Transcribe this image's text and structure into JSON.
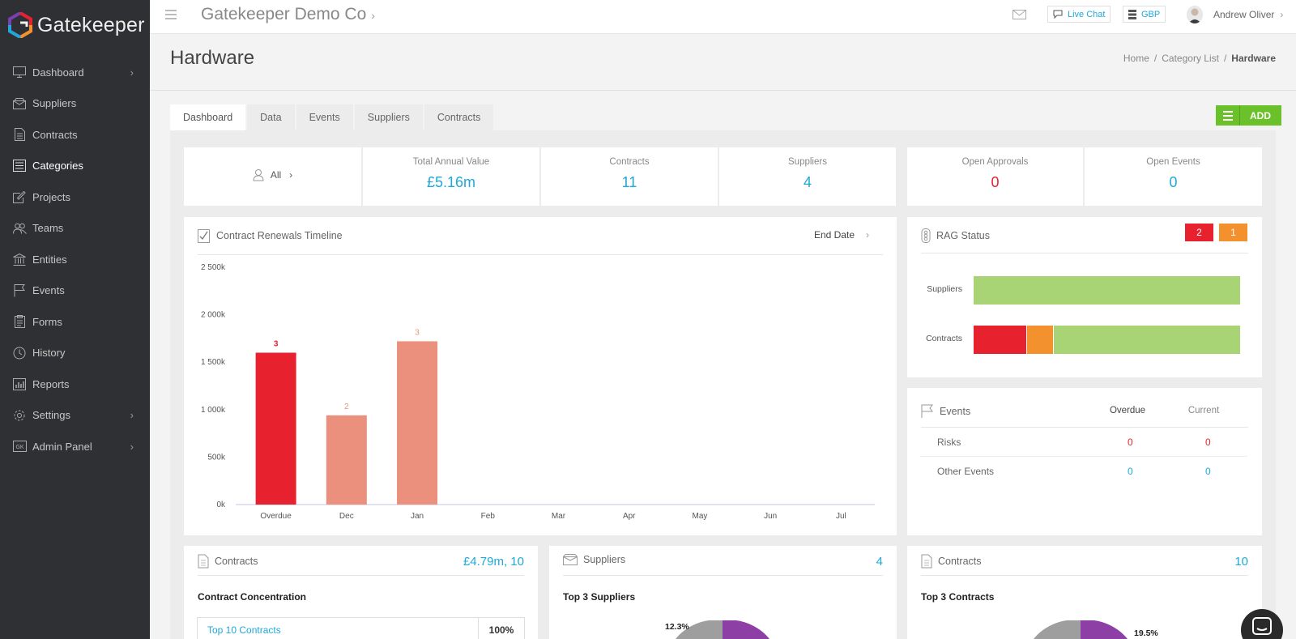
{
  "brand": {
    "name": "Gatekeeper"
  },
  "sidebar": {
    "items": [
      {
        "label": "Dashboard",
        "icon": "monitor-icon",
        "chevron": true
      },
      {
        "label": "Suppliers",
        "icon": "box-icon",
        "chevron": false
      },
      {
        "label": "Contracts",
        "icon": "document-icon",
        "chevron": false
      },
      {
        "label": "Categories",
        "icon": "list-icon",
        "chevron": false,
        "active": true
      },
      {
        "label": "Projects",
        "icon": "edit-icon",
        "chevron": false
      },
      {
        "label": "Teams",
        "icon": "people-icon",
        "chevron": false
      },
      {
        "label": "Entities",
        "icon": "bank-icon",
        "chevron": false
      },
      {
        "label": "Events",
        "icon": "flag-icon",
        "chevron": false
      },
      {
        "label": "Forms",
        "icon": "clipboard-icon",
        "chevron": false
      },
      {
        "label": "History",
        "icon": "clock-icon",
        "chevron": false
      },
      {
        "label": "Reports",
        "icon": "bar-chart-icon",
        "chevron": false
      },
      {
        "label": "Settings",
        "icon": "gear-icon",
        "chevron": true
      },
      {
        "label": "Admin Panel",
        "icon": "gk-icon",
        "chevron": true
      }
    ]
  },
  "topbar": {
    "company": "Gatekeeper Demo Co",
    "live_chat": "Live Chat",
    "currency": "GBP",
    "user": "Andrew Oliver"
  },
  "page": {
    "title": "Hardware",
    "breadcrumb": [
      "Home",
      "Category List",
      "Hardware"
    ]
  },
  "tabs": [
    "Dashboard",
    "Data",
    "Events",
    "Suppliers",
    "Contracts"
  ],
  "add_button": "ADD",
  "stats": {
    "filter": "All",
    "total_annual_value": {
      "label": "Total Annual Value",
      "value": "£5.16m"
    },
    "contracts": {
      "label": "Contracts",
      "value": "11"
    },
    "suppliers": {
      "label": "Suppliers",
      "value": "4"
    },
    "open_approvals": {
      "label": "Open Approvals",
      "value": "0"
    },
    "open_events": {
      "label": "Open Events",
      "value": "0"
    }
  },
  "timeline": {
    "title": "Contract Renewals Timeline",
    "sort": "End Date"
  },
  "chart_data": {
    "type": "bar",
    "title": "Contract Renewals Timeline",
    "categories": [
      "Overdue",
      "Dec",
      "Jan",
      "Feb",
      "Mar",
      "Apr",
      "May",
      "Jun",
      "Jul"
    ],
    "values": [
      1600000,
      940000,
      1720000,
      0,
      0,
      0,
      0,
      0,
      0
    ],
    "counts": [
      "3",
      "2",
      "3",
      "",
      "",
      "",
      "",
      "",
      ""
    ],
    "colors": [
      "#e8212f",
      "#ec907e",
      "#ec907e",
      "#ec907e",
      "#ec907e",
      "#ec907e",
      "#ec907e",
      "#ec907e",
      "#ec907e"
    ],
    "count_colors": [
      "#e8212f",
      "#ec907e",
      "#ec907e"
    ],
    "ylim": [
      0,
      2500000
    ],
    "yticks": [
      0,
      500000,
      1000000,
      1500000,
      2000000,
      2500000
    ],
    "ytick_labels": [
      "0k",
      "500k",
      "1 000k",
      "1 500k",
      "2 000k",
      "2 500k"
    ],
    "grid": false
  },
  "rag": {
    "title": "RAG Status",
    "badges": [
      {
        "value": "2",
        "color": "#e8212f"
      },
      {
        "value": "1",
        "color": "#f3912f"
      }
    ],
    "rows": [
      {
        "label": "Suppliers",
        "segments": [
          {
            "fraction": 1.0,
            "color": "#a9d475"
          }
        ]
      },
      {
        "label": "Contracts",
        "segments": [
          {
            "fraction": 0.2,
            "color": "#e8212f"
          },
          {
            "fraction": 0.1,
            "color": "#f3912f"
          },
          {
            "fraction": 0.7,
            "color": "#a9d475"
          }
        ]
      }
    ]
  },
  "events": {
    "title": "Events",
    "col_overdue": "Overdue",
    "col_current": "Current",
    "rows": [
      {
        "label": "Risks",
        "overdue": "0",
        "current": "0",
        "color": "#e8212f"
      },
      {
        "label": "Other Events",
        "overdue": "0",
        "current": "0",
        "color": "#1ea9d9"
      }
    ]
  },
  "bottom": {
    "contracts": {
      "title": "Contracts",
      "value": "£4.79m, 10",
      "subtitle": "Contract Concentration",
      "table_label": "Top 10 Contracts",
      "table_value": "100%"
    },
    "suppliers": {
      "title": "Suppliers",
      "value": "4",
      "subtitle": "Top 3 Suppliers",
      "pie_label": "12.3%"
    },
    "contracts2": {
      "title": "Contracts",
      "value": "10",
      "subtitle": "Top 3 Contracts",
      "pie_label": "19.5%"
    }
  }
}
